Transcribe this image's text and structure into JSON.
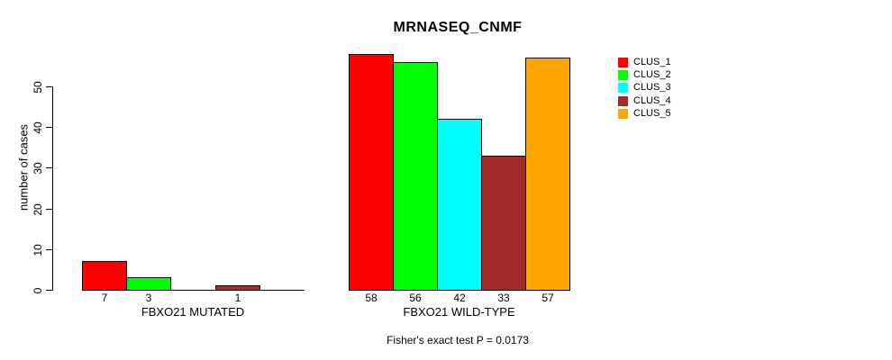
{
  "chart_data": {
    "type": "bar",
    "title": "MRNASEQ_CNMF",
    "ylabel": "number of cases",
    "footer": "Fisher's exact test P = 0.0173",
    "yticks": [
      0,
      10,
      20,
      30,
      40,
      50
    ],
    "ylim": [
      0,
      58
    ],
    "grid": false,
    "legend_position": "right",
    "series": [
      {
        "name": "CLUS_1",
        "color": "#FF0000"
      },
      {
        "name": "CLUS_2",
        "color": "#00FF00"
      },
      {
        "name": "CLUS_3",
        "color": "#00FFFF"
      },
      {
        "name": "CLUS_4",
        "color": "#A52A2A"
      },
      {
        "name": "CLUS_5",
        "color": "#FFA500"
      }
    ],
    "groups": [
      {
        "label": "FBXO21 MUTATED",
        "values": [
          7,
          3,
          0,
          1,
          0
        ]
      },
      {
        "label": "FBXO21 WILD-TYPE",
        "values": [
          58,
          56,
          42,
          33,
          57
        ]
      }
    ],
    "colors": {
      "text": "#000000",
      "background": "#ffffff",
      "bar_border": "#000000"
    }
  }
}
